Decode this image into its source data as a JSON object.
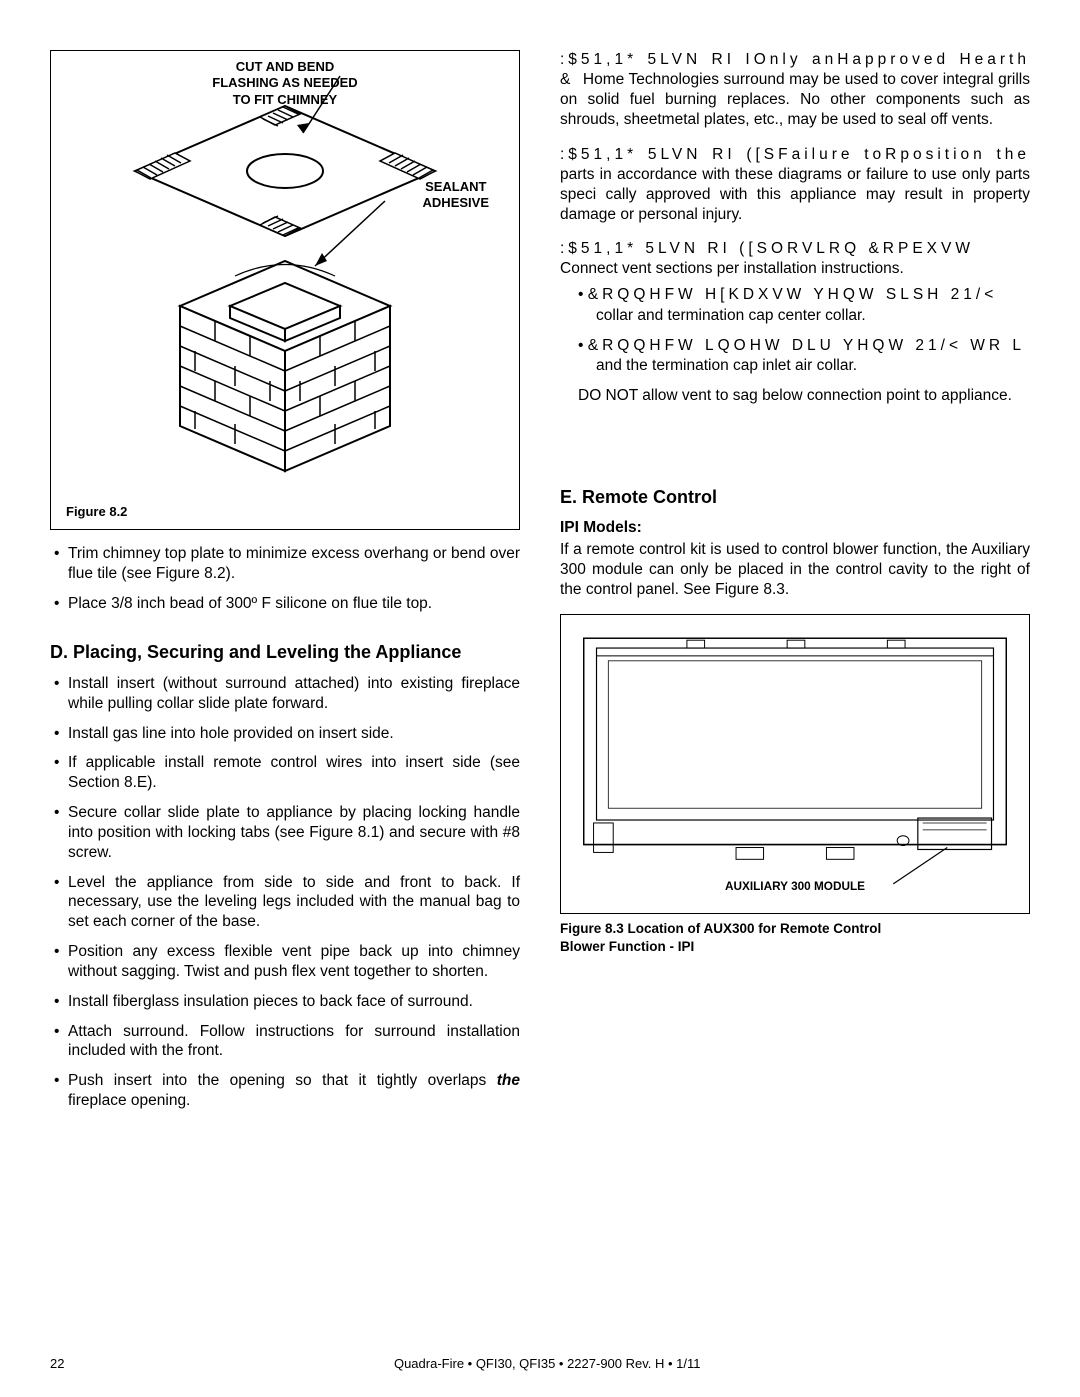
{
  "left": {
    "figure": {
      "label_top": "CUT AND BEND\nFLASHING AS NEEDED\nTO FIT CHIMNEY",
      "label_mid": "SEALANT\nADHESIVE",
      "caption": "Figure 8.2"
    },
    "bullets_a": [
      "Trim chimney top plate to minimize excess overhang or bend over flue tile (see Figure 8.2).",
      "Place 3/8 inch bead of 300º F silicone on flue tile top."
    ],
    "section_d_head": "D.  Placing, Securing and Leveling the Appliance",
    "bullets_d": [
      "Install insert (without surround attached) into existing fireplace while pulling collar slide plate forward.",
      "Install gas line into hole provided on insert side.",
      "If applicable install remote control wires into insert side (see Section 8.E).",
      "Secure collar slide plate to appliance by placing locking handle into position with locking tabs (see Figure 8.1) and secure with #8 screw.",
      "Level the appliance from side to side and front to back. If necessary, use the leveling legs included with the manual bag to set each corner of the base.",
      "Position any excess flexible vent pipe back up into chimney without sagging. Twist and push flex vent together to shorten.",
      "Install fiberglass insulation pieces to back face of surround.",
      "Attach surround. Follow instructions for surround installation included with the front.",
      "Push insert into the opening so that it tightly overlaps"
    ],
    "last_bullet_em": "the",
    "last_bullet_tail": " fireplace opening."
  },
  "right": {
    "w1_pre": ":$51,1*    5LVN  RI IOnly anHapproved Hearth & ",
    "w1_body": "Home Technologies surround may be used to cover integral grills on solid fuel burning  replaces. No other components such as shrouds, sheetmetal plates, etc., may be used to seal off vents.",
    "w2_pre": ":$51,1*    5LVN  RI ([SFailure toRposition the ",
    "w2_body": "parts in accordance with these diagrams or failure to use only parts speci cally approved with this appliance may result in property damage or personal injury.",
    "w3_pre": ":$51,1*    5LVN  RI ([SORVLRQ &RPEXVW",
    "w3_body": "Connect vent sections per installation instructions.",
    "c1_pre": "&RQQHFW H[KDXVW YHQW SLSH 21/<",
    "c1_body": "collar and termination cap center collar.",
    "c2_pre": "&RQQHFW LQOHW DLU YHQW 21/< WR L",
    "c2_body": "and the termination cap inlet air collar.",
    "c3": "DO NOT allow vent  to sag below connection point to appliance.",
    "section_e_head": "E.  Remote Control",
    "ipi_head": "IPI Models:",
    "ipi_body": "If a remote control kit is used to control blower function, the Auxiliary 300 module can only be placed in the control cavity to the right of the control panel.  See Figure 8.3.",
    "aux_label": "AUXILIARY 300 MODULE",
    "fig_caption": "Figure 8.3 Location of  AUX300 for Remote Control\n                  Blower Function - IPI"
  },
  "footer": {
    "page": "22",
    "text": "Quadra-Fire  •  QFI30, QFI35  •  2227-900  Rev. H  •  1/11"
  },
  "colors": {
    "text": "#000000",
    "bg": "#ffffff",
    "line": "#000000"
  }
}
